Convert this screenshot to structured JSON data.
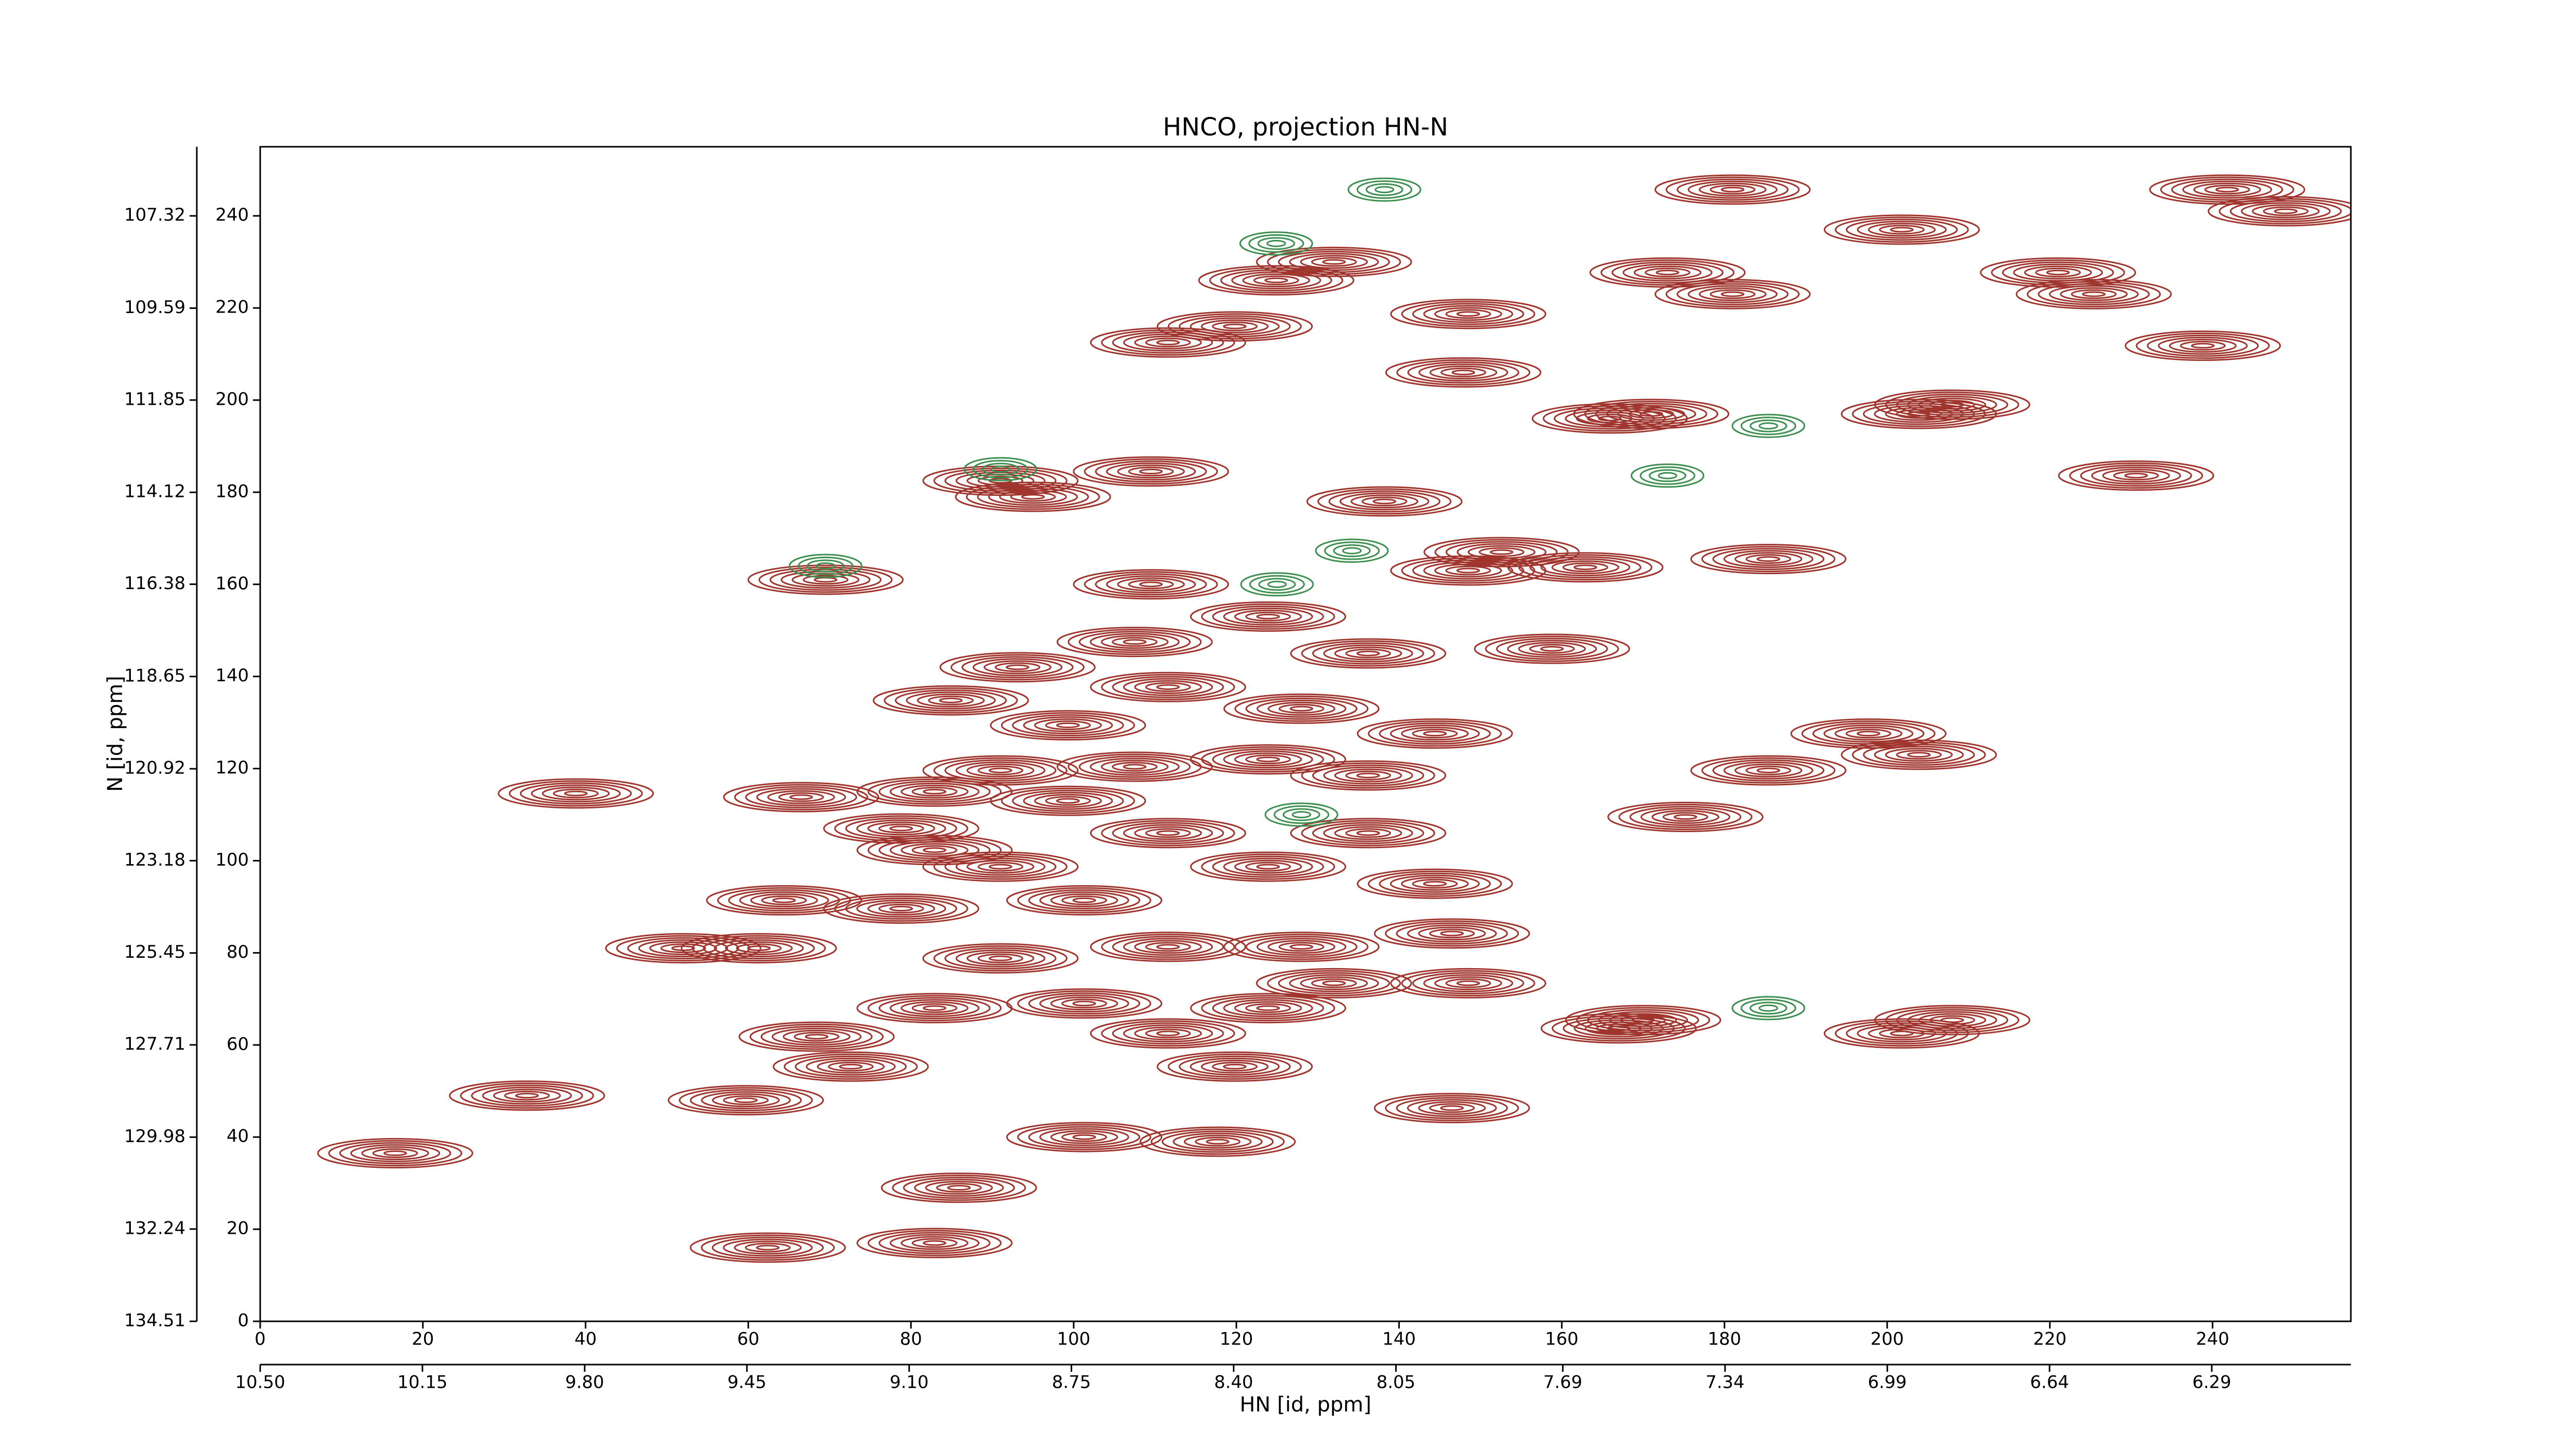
{
  "chart_data": {
    "type": "contour",
    "title": "HNCO, projection HN-N",
    "xlabel": "HN [id, ppm]",
    "ylabel": "N [id, ppm]",
    "xlim": [
      0,
      257
    ],
    "xticks": [
      0,
      20,
      40,
      60,
      80,
      100,
      120,
      140,
      160,
      180,
      200,
      220,
      240
    ],
    "ylim": [
      0,
      255
    ],
    "yticks": [
      0,
      20,
      40,
      60,
      80,
      100,
      120,
      140,
      160,
      180,
      200,
      220,
      240
    ],
    "x2lim": [
      10.5,
      5.99
    ],
    "x2ticks": [
      {
        "value": 10.5,
        "label": "10.50"
      },
      10.15,
      {
        "value": 9.8,
        "label": "9.80"
      },
      9.45,
      {
        "value": 9.1,
        "label": "9.10"
      },
      8.75,
      {
        "value": 8.4,
        "label": "8.40"
      },
      8.05,
      7.69,
      7.34,
      6.99,
      6.64,
      6.29
    ],
    "y2lim": [
      134.51,
      105.62
    ],
    "y2ticks": [
      134.51,
      132.24,
      129.98,
      127.71,
      125.45,
      123.18,
      120.92,
      118.65,
      116.38,
      114.12,
      111.85,
      109.59,
      107.32
    ],
    "series": [
      {
        "color": "#a0352e",
        "x": [
          16.6,
          32.8,
          38.8,
          52,
          61.3,
          59.7,
          62.4,
          82.9,
          85.9,
          69.5,
          91,
          95,
          109.5,
          111.6,
          119.8,
          124.9,
          132,
          148.5,
          147.9,
          181,
          173,
          181,
          201.8,
          221,
          225.4,
          238.8,
          241.8,
          249,
          165.9,
          171,
          203.9,
          208,
          230.6,
          185.4,
          162.9,
          158.8,
          197.7,
          185.4,
          175.2,
          203.9,
          167,
          170,
          201.8,
          208,
          146.5,
          117.7,
          101.3,
          72.6,
          68.4,
          82.9,
          91,
          111.6,
          128,
          146.5,
          148.5,
          132,
          111.6,
          119.8,
          123.9,
          101.3,
          78.8,
          82.9,
          91,
          78.8,
          66.5,
          82.9,
          91,
          107.5,
          123.9,
          136.2,
          144.4,
          128,
          111.6,
          93.1,
          84.9,
          99.3,
          107.5,
          136.2,
          123.9,
          109.5,
          148.5,
          138.2,
          152.6,
          123.9,
          136.2,
          111.6,
          101.3,
          144.4,
          64.4,
          99.3
        ],
        "y": [
          36.5,
          49,
          114.6,
          81,
          81,
          48,
          16,
          17,
          29,
          161,
          182.5,
          179,
          184.5,
          212.5,
          216,
          226,
          230,
          218.7,
          206,
          245.7,
          227.7,
          223,
          237,
          227.7,
          223,
          211.8,
          245.7,
          241,
          196,
          197,
          197,
          199,
          183.6,
          165.5,
          163.7,
          146,
          127.6,
          119.6,
          109.5,
          123,
          63.6,
          65.4,
          62.5,
          65.4,
          46.3,
          39,
          40,
          55.3,
          61.8,
          68,
          78.8,
          81.3,
          81.3,
          84.2,
          73.4,
          73.4,
          62.5,
          55.3,
          68,
          69,
          89.6,
          102.3,
          98.7,
          107,
          113.8,
          115,
          119.6,
          120.4,
          122,
          118.5,
          127.6,
          133,
          137.7,
          142,
          134.8,
          129.4,
          147.5,
          145,
          153,
          160,
          163,
          178,
          167,
          98.7,
          106,
          106,
          91.4,
          95,
          91.4,
          113
        ]
      },
      {
        "color": "#3d8f50",
        "x": [
          138.2,
          124.9,
          185.4,
          173,
          134.2,
          185.4,
          125,
          69.5,
          91,
          128
        ],
        "y": [
          245.7,
          234,
          194.4,
          183.6,
          167.3,
          68,
          160,
          164,
          185,
          110
        ]
      }
    ]
  }
}
